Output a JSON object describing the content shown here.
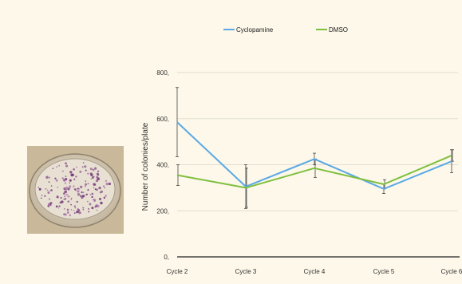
{
  "colors": {
    "background": "#fdf8e9",
    "cyclopamine": "#5aa9e6",
    "dmso": "#7fbf3f",
    "error_bar": "#444444",
    "axis": "#222222",
    "grid": "#e2ddd0"
  },
  "photo": {
    "subject": "petri-dish-with-stained-colonies"
  },
  "chart_data": {
    "type": "line",
    "title": "",
    "xlabel": "",
    "ylabel": "Number of colonies/plate",
    "categories": [
      "Cycle 2",
      "Cycle 3",
      "Cycle 4",
      "Cycle 5",
      "Cycle 6"
    ],
    "ylim": [
      0,
      800
    ],
    "yticks": [
      0,
      200,
      400,
      600,
      800
    ],
    "ytick_labels": [
      "0,",
      "200,",
      "400,",
      "600,",
      "800,"
    ],
    "grid": "horizontal",
    "legend_position": "top",
    "series": [
      {
        "name": "Cyclopamine",
        "color": "#5aa9e6",
        "values": [
          585,
          305,
          425,
          295,
          415
        ],
        "errors": [
          150,
          95,
          25,
          20,
          50
        ]
      },
      {
        "name": "DMSO",
        "color": "#7fbf3f",
        "values": [
          355,
          300,
          385,
          315,
          440
        ],
        "errors": [
          45,
          85,
          40,
          20,
          25
        ]
      }
    ]
  }
}
